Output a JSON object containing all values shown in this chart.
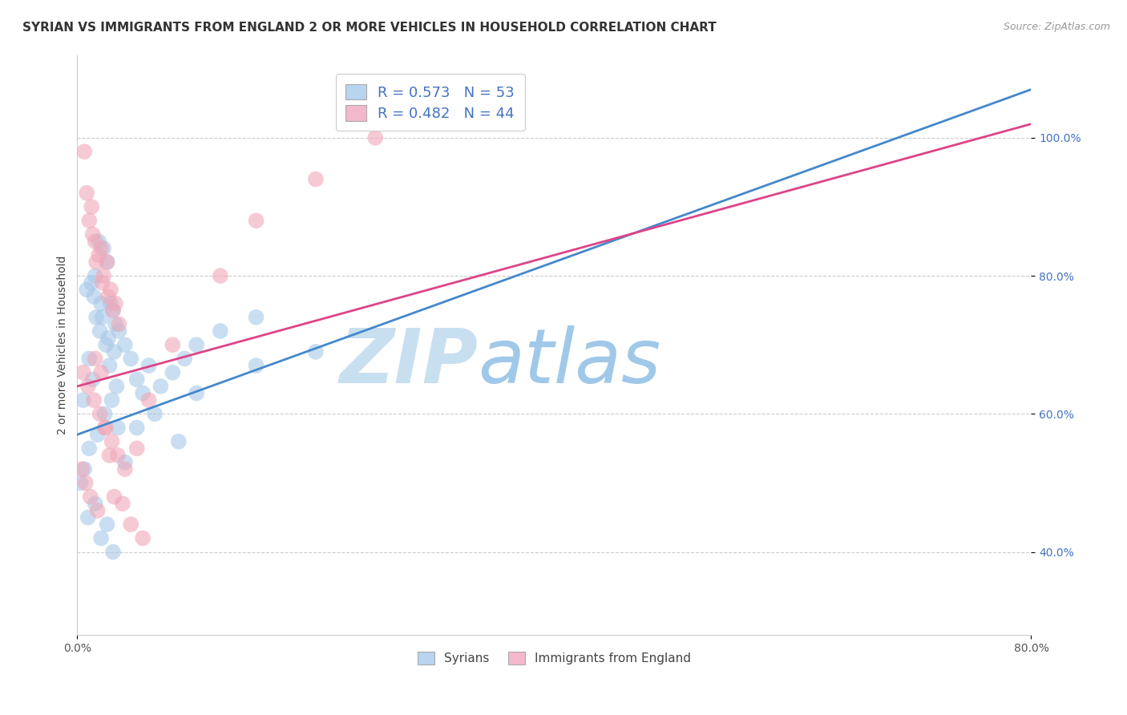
{
  "title": "SYRIAN VS IMMIGRANTS FROM ENGLAND 2 OR MORE VEHICLES IN HOUSEHOLD CORRELATION CHART",
  "source": "Source: ZipAtlas.com",
  "ylabel_label": "2 or more Vehicles in Household",
  "legend_labels": [
    "Syrians",
    "Immigrants from England"
  ],
  "blue_R": "R = 0.573",
  "blue_N": "N = 53",
  "pink_R": "R = 0.482",
  "pink_N": "N = 44",
  "blue_scatter_color": "#a8c8e8",
  "pink_scatter_color": "#f0a8b8",
  "blue_line_color": "#4488cc",
  "pink_line_color": "#dd4488",
  "legend_blue_patch": "#b8d4ee",
  "legend_pink_patch": "#f4b8cc",
  "text_color": "#4472c4",
  "watermark_zip_color": "#c8dff0",
  "watermark_atlas_color": "#a0c8e8",
  "blue_scatter_x": [
    0.5,
    0.8,
    1.0,
    1.2,
    1.3,
    1.4,
    1.5,
    1.6,
    1.7,
    1.8,
    1.9,
    2.0,
    2.1,
    2.2,
    2.3,
    2.4,
    2.5,
    2.6,
    2.7,
    2.8,
    2.9,
    3.0,
    3.1,
    3.2,
    3.3,
    3.4,
    3.5,
    4.0,
    4.5,
    5.0,
    5.5,
    6.0,
    7.0,
    8.0,
    9.0,
    10.0,
    12.0,
    15.0,
    1.0,
    1.5,
    2.0,
    2.5,
    3.0,
    4.0,
    5.0,
    6.5,
    8.5,
    10.0,
    15.0,
    20.0,
    0.3,
    0.6,
    0.9
  ],
  "blue_scatter_y": [
    62,
    78,
    68,
    79,
    65,
    77,
    80,
    74,
    57,
    85,
    72,
    76,
    74,
    84,
    60,
    70,
    82,
    71,
    67,
    76,
    62,
    75,
    69,
    73,
    64,
    58,
    72,
    70,
    68,
    65,
    63,
    67,
    64,
    66,
    68,
    70,
    72,
    74,
    55,
    47,
    42,
    44,
    40,
    53,
    58,
    60,
    56,
    63,
    67,
    69,
    50,
    52,
    45
  ],
  "pink_scatter_x": [
    0.4,
    0.6,
    0.8,
    1.0,
    1.2,
    1.3,
    1.5,
    1.6,
    1.8,
    1.9,
    2.0,
    2.1,
    2.2,
    2.4,
    2.5,
    2.6,
    2.8,
    2.9,
    3.0,
    3.2,
    3.4,
    3.5,
    4.0,
    5.0,
    6.0,
    8.0,
    12.0,
    15.0,
    20.0,
    25.0,
    0.5,
    0.7,
    0.9,
    1.1,
    1.4,
    1.7,
    2.3,
    2.7,
    3.1,
    4.5,
    5.5,
    1.5,
    2.0,
    3.8
  ],
  "pink_scatter_y": [
    52,
    98,
    92,
    88,
    90,
    86,
    85,
    82,
    83,
    60,
    84,
    79,
    80,
    58,
    82,
    77,
    78,
    56,
    75,
    76,
    54,
    73,
    52,
    55,
    62,
    70,
    80,
    88,
    94,
    100,
    66,
    50,
    64,
    48,
    62,
    46,
    58,
    54,
    48,
    44,
    42,
    68,
    66,
    47
  ],
  "blue_line_x0": 0,
  "blue_line_y0": 57,
  "blue_line_x1": 80,
  "blue_line_y1": 107,
  "pink_line_x0": 0,
  "pink_line_y0": 64,
  "pink_line_x1": 80,
  "pink_line_y1": 102,
  "xlim_min": 0,
  "xlim_max": 80,
  "ylim_min": 28,
  "ylim_max": 112,
  "yticks": [
    40,
    60,
    80,
    100
  ],
  "xticks": [
    0,
    80
  ],
  "background": "#ffffff",
  "grid_color": "#cccccc",
  "title_fontsize": 11,
  "source_fontsize": 9
}
